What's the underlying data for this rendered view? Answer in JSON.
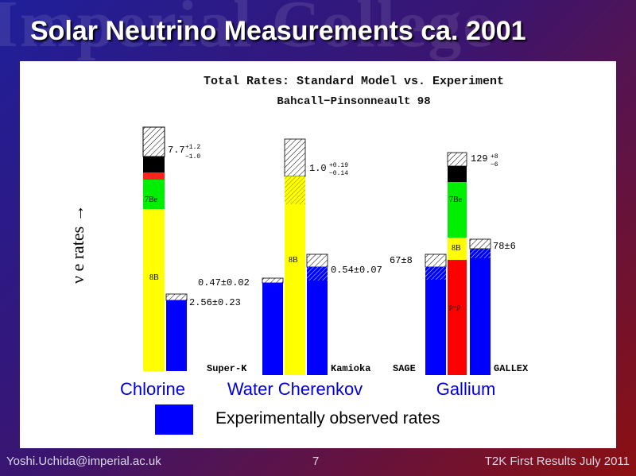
{
  "slide": {
    "title": "Solar Neutrino Measurements ca. 2001",
    "watermark": "Imperial College",
    "footer_left": "Yoshi.Uchida@imperial.ac.uk",
    "page_number": "7",
    "footer_right": "T2K First Results July 2011"
  },
  "legend": {
    "label": "Experimentally observed rates",
    "color": "#0000ff"
  },
  "chart_data": {
    "type": "bar",
    "title": "Total Rates: Standard Model vs. Experiment",
    "subtitle": "Bahcall−Pinsonneault 98",
    "ylabel": "ν e rates →",
    "colors": {
      "8B": "#ffff00",
      "7Be": "#00ee00",
      "pep": "#ff2020",
      "pp": "#ff0000",
      "CNO": "#000000",
      "observed": "#0000ff"
    },
    "experiments": [
      {
        "name": "Chlorine",
        "theory": {
          "value": "7.7",
          "err_up": "+1.2",
          "err_down": "−1.0",
          "label_8B": "8B",
          "label_7Be": "7Be"
        },
        "measurements": [
          {
            "detector": "",
            "value": "2.56±0.23"
          }
        ],
        "theory_fractions": {
          "8B": 0.755,
          "7Be": 0.155,
          "pep": 0.025,
          "CNO": 0.065
        },
        "measured_fraction": 0.33
      },
      {
        "name": "Water Cherenkov",
        "theory": {
          "value": "1.0",
          "err_up": "+0.19",
          "err_down": "−0.14",
          "label_8B": "8B"
        },
        "measurements": [
          {
            "detector": "Super-K",
            "value": "0.47±0.02"
          },
          {
            "detector": "Kamioka",
            "value": "0.54±0.07"
          }
        ],
        "theory_fractions": {
          "8B": 1.0
        },
        "measured_fraction": [
          0.47,
          0.54
        ]
      },
      {
        "name": "Gallium",
        "theory": {
          "value": "129",
          "err_up": "+8",
          "err_down": "−6",
          "label_8B": "8B",
          "label_7Be": "7Be",
          "label_pp": "p−p"
        },
        "measurements": [
          {
            "detector": "SAGE",
            "value": "67±8"
          },
          {
            "detector": "GALLEX",
            "value": "78±6"
          }
        ],
        "theory_fractions": {
          "pp": 0.55,
          "8B": 0.08,
          "7Be": 0.27,
          "CNO": 0.07
        },
        "measured_fraction": [
          0.52,
          0.6
        ]
      }
    ]
  }
}
